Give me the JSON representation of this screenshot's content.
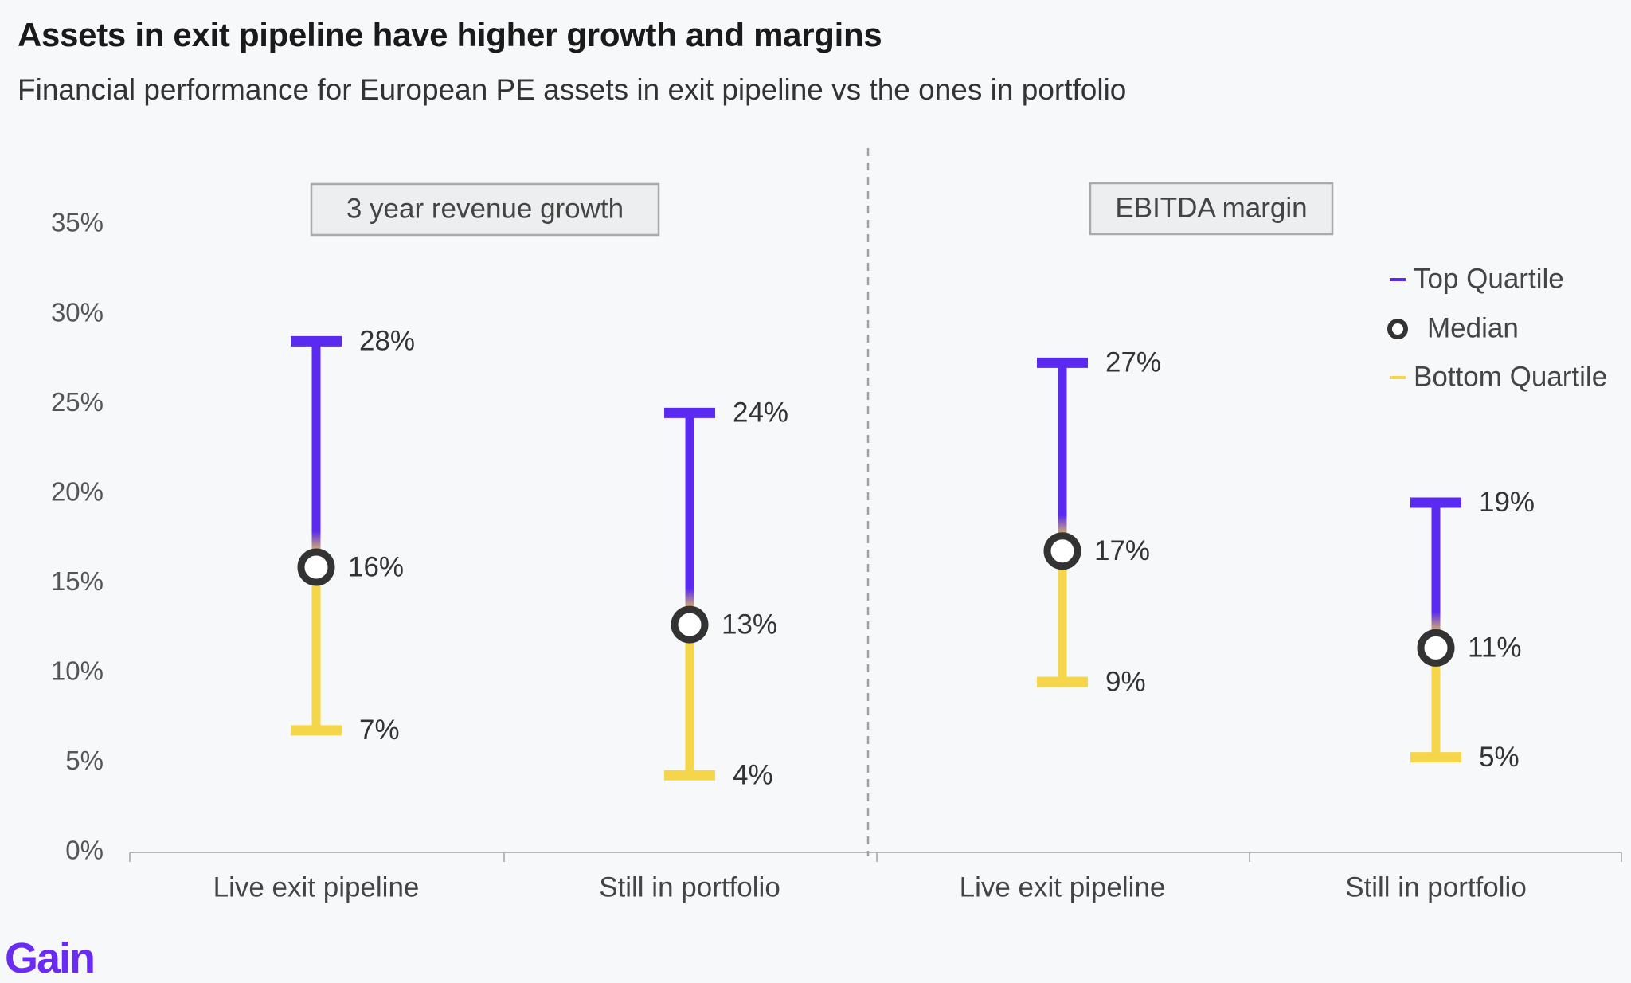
{
  "header": {
    "title": "Assets in exit pipeline have higher growth and margins",
    "subtitle": "Financial performance for European PE assets in exit pipeline vs the ones in portfolio"
  },
  "brand": {
    "logo_text": "Gain"
  },
  "colors": {
    "top_quartile": "#5b2af0",
    "median_ring": "#333333",
    "bottom_quartile": "#f5d54a",
    "axis": "#b8b8b8",
    "divider": "#a0a0a0"
  },
  "chart_data": {
    "type": "range",
    "y_ticks": [
      "0%",
      "5%",
      "10%",
      "15%",
      "20%",
      "25%",
      "30%",
      "35%"
    ],
    "ylim": [
      0,
      35
    ],
    "legend": {
      "placement": "top-right",
      "entries": [
        "Top Quartile",
        "Median",
        "Bottom Quartile"
      ]
    },
    "panels": [
      {
        "label": "3 year revenue growth",
        "groups": [
          {
            "category": "Live exit pipeline",
            "top": 28.5,
            "median": 15.9,
            "bottom": 6.8,
            "top_label": "28%",
            "median_label": "16%",
            "bottom_label": "7%"
          },
          {
            "category": "Still in portfolio",
            "top": 24.5,
            "median": 12.7,
            "bottom": 4.3,
            "top_label": "24%",
            "median_label": "13%",
            "bottom_label": "4%"
          }
        ]
      },
      {
        "label": "EBITDA margin",
        "groups": [
          {
            "category": "Live exit pipeline",
            "top": 27.3,
            "median": 16.8,
            "bottom": 9.5,
            "top_label": "27%",
            "median_label": "17%",
            "bottom_label": "9%"
          },
          {
            "category": "Still in portfolio",
            "top": 19.5,
            "median": 11.4,
            "bottom": 5.3,
            "top_label": "19%",
            "median_label": "11%",
            "bottom_label": "5%"
          }
        ]
      }
    ]
  }
}
